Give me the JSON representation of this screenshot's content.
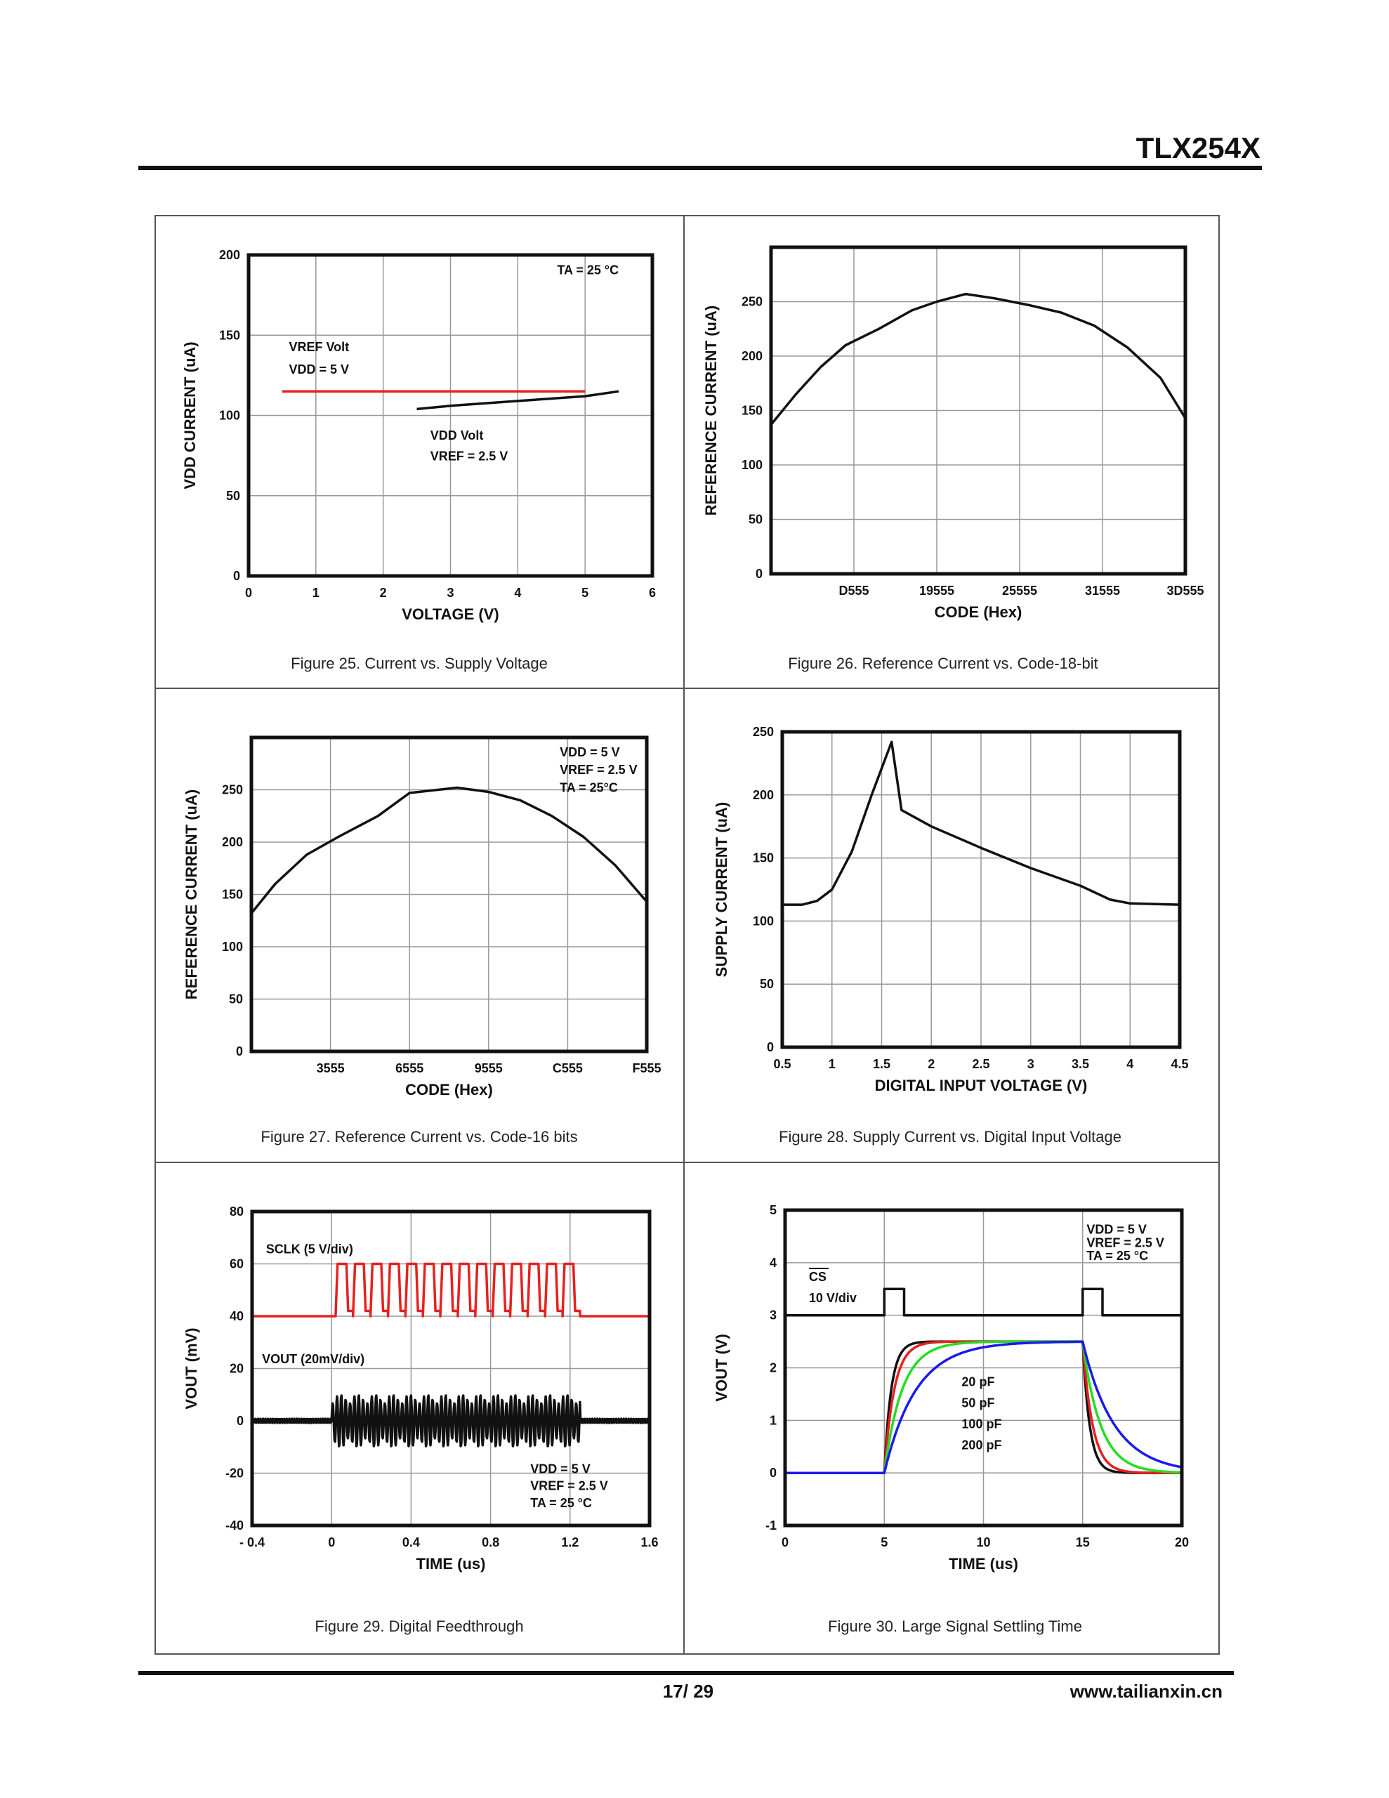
{
  "header": {
    "part_number": "TLX254X"
  },
  "footer": {
    "page": "17/ 29",
    "website": "www.tailianxin.cn"
  },
  "chart_data": [
    {
      "type": "line",
      "title": "Figure 25.  Current vs. Supply Voltage",
      "xlabel": "VOLTAGE (V)",
      "ylabel": "VDD CURRENT (uA)",
      "xlim": [
        0,
        6
      ],
      "ylim": [
        0,
        200
      ],
      "grid": true,
      "xticks": [
        0,
        1,
        2,
        3,
        4,
        5,
        6
      ],
      "xtick_labels": [
        "0",
        "1",
        "2",
        "3",
        "4",
        "5",
        "6"
      ],
      "yticks": [
        0,
        50,
        100,
        150,
        200
      ],
      "ytick_labels": [
        "0",
        "50",
        "100",
        "150",
        "200"
      ],
      "series": [
        {
          "name": "VREF Volt, VDD = 5 V",
          "color": "#e8201e",
          "x": [
            0.5,
            5.0
          ],
          "y": [
            115,
            115
          ]
        },
        {
          "name": "VDD Volt, VREF = 2.5 V",
          "color": "#111111",
          "x": [
            2.5,
            3,
            4,
            5,
            5.5
          ],
          "y": [
            104,
            106,
            109,
            112,
            115
          ]
        }
      ],
      "annotations": [
        "TA = 25 °C",
        "VREF Volt",
        "VDD = 5 V",
        "VDD Volt",
        "VREF = 2.5 V"
      ]
    },
    {
      "type": "line",
      "title": "Figure 26.  Reference Current vs. Code-18-bit",
      "xlabel": "CODE (Hex)",
      "ylabel": "REFERENCE CURRENT (uA)",
      "xlim": [
        0,
        5
      ],
      "ylim": [
        0,
        300
      ],
      "grid": true,
      "xticks": [
        1,
        2,
        3,
        4,
        5
      ],
      "xtick_labels": [
        "D555",
        "19555",
        "25555",
        "31555",
        "3D555"
      ],
      "yticks": [
        0,
        50,
        100,
        150,
        200,
        250
      ],
      "ytick_labels": [
        "0",
        "50",
        "100",
        "150",
        "200",
        "250"
      ],
      "series": [
        {
          "name": "Reference current",
          "color": "#111111",
          "x": [
            0,
            0.3,
            0.6,
            0.9,
            1.3,
            1.7,
            2.0,
            2.35,
            2.7,
            3.1,
            3.5,
            3.9,
            4.3,
            4.7,
            5.0
          ],
          "y": [
            137,
            165,
            190,
            210,
            225,
            242,
            250,
            257,
            253,
            247,
            240,
            228,
            208,
            180,
            143
          ]
        }
      ],
      "annotations": []
    },
    {
      "type": "line",
      "title": "Figure 27.  Reference Current vs. Code-16 bits",
      "xlabel": "CODE (Hex)",
      "ylabel": "REFERENCE CURRENT (uA)",
      "xlim": [
        0,
        5
      ],
      "ylim": [
        0,
        300
      ],
      "grid": true,
      "xticks": [
        1,
        2,
        3,
        4,
        5
      ],
      "xtick_labels": [
        "3555",
        "6555",
        "9555",
        "C555",
        "F555"
      ],
      "yticks": [
        0,
        50,
        100,
        150,
        200,
        250
      ],
      "ytick_labels": [
        "0",
        "50",
        "100",
        "150",
        "200",
        "250"
      ],
      "series": [
        {
          "name": "Reference current",
          "color": "#111111",
          "x": [
            0,
            0.3,
            0.7,
            1.1,
            1.6,
            2.0,
            2.6,
            3.0,
            3.4,
            3.8,
            4.2,
            4.6,
            5.0
          ],
          "y": [
            132,
            160,
            188,
            205,
            225,
            247,
            252,
            248,
            240,
            225,
            205,
            178,
            143
          ]
        }
      ],
      "annotations": [
        "VDD = 5 V",
        "VREF = 2.5 V",
        "TA = 25°C"
      ]
    },
    {
      "type": "line",
      "title": "Figure 28.  Supply Current vs. Digital Input Voltage",
      "xlabel": "DIGITAL INPUT VOLTAGE (V)",
      "ylabel": "SUPPLY CURRENT (uA)",
      "xlim": [
        0.5,
        4.5
      ],
      "ylim": [
        0,
        250
      ],
      "grid": true,
      "xticks": [
        0.5,
        1,
        1.5,
        2,
        2.5,
        3,
        3.5,
        4,
        4.5
      ],
      "xtick_labels": [
        "0.5",
        "1",
        "1.5",
        "2",
        "2.5",
        "3",
        "3.5",
        "4",
        "4.5"
      ],
      "yticks": [
        0,
        50,
        100,
        150,
        200,
        250
      ],
      "ytick_labels": [
        "0",
        "50",
        "100",
        "150",
        "200",
        "250"
      ],
      "series": [
        {
          "name": "Supply current",
          "color": "#111111",
          "x": [
            0.5,
            0.7,
            0.85,
            1.0,
            1.2,
            1.4,
            1.6,
            1.7,
            2.0,
            2.5,
            3.0,
            3.5,
            3.8,
            4.0,
            4.5
          ],
          "y": [
            113,
            113,
            116,
            125,
            155,
            200,
            242,
            188,
            175,
            158,
            142,
            128,
            117,
            114,
            113
          ]
        }
      ],
      "annotations": []
    },
    {
      "type": "line",
      "title": "Figure 29.  Digital Feedthrough",
      "xlabel": "TIME (us)",
      "ylabel": "VOUT (mV)",
      "xlim": [
        -0.4,
        1.6
      ],
      "ylim": [
        -40,
        80
      ],
      "grid": true,
      "xticks": [
        -0.4,
        0,
        0.4,
        0.8,
        1.2,
        1.6
      ],
      "xtick_labels": [
        "- 0.4",
        "0",
        "0.4",
        "0.8",
        "1.2",
        "1.6"
      ],
      "yticks": [
        -40,
        -20,
        0,
        20,
        40,
        60,
        80
      ],
      "ytick_labels": [
        "-40",
        "-20",
        "0",
        "20",
        "40",
        "60",
        "80"
      ],
      "series": [
        {
          "name": "SCLK (5 V/div)",
          "color": "#e8201e",
          "kind": "square",
          "low": 40,
          "high": 60,
          "start": 0.02,
          "end": 1.25,
          "pulses": 14
        },
        {
          "name": "VOUT (20mV/div)",
          "color": "#111111",
          "kind": "feedthrough",
          "baseline": 0,
          "amplitude": 10,
          "start": 0.0,
          "end": 1.25
        }
      ],
      "annotations": [
        "SCLK (5 V/div)",
        "VOUT (20mV/div)",
        "VDD = 5 V",
        "VREF = 2.5 V",
        "TA = 25 °C"
      ]
    },
    {
      "type": "line",
      "title": "Figure 30.  Large Signal Settling Time",
      "xlabel": "TIME (us)",
      "ylabel": "VOUT (V)",
      "xlim": [
        0,
        20
      ],
      "ylim": [
        -1,
        5
      ],
      "grid": true,
      "xticks": [
        0,
        5,
        10,
        15,
        20
      ],
      "xtick_labels": [
        "0",
        "5",
        "10",
        "15",
        "20"
      ],
      "yticks": [
        -1,
        0,
        1,
        2,
        3,
        4,
        5
      ],
      "ytick_labels": [
        "-1",
        "0",
        "1",
        "2",
        "3",
        "4",
        "5"
      ],
      "series": [
        {
          "name": "CS 10 V/div",
          "color": "#111111",
          "x": [
            0,
            5,
            5,
            6,
            6,
            15,
            15,
            16,
            16,
            20
          ],
          "y": [
            3,
            3,
            3.5,
            3.5,
            3,
            3,
            3.5,
            3.5,
            3,
            3
          ]
        },
        {
          "name": "20 pF",
          "color": "#111111",
          "kind": "settling",
          "tau_us": 0.35,
          "rise": 5,
          "fall": 15,
          "level": 2.5
        },
        {
          "name": "50 pF",
          "color": "#e8201e",
          "kind": "settling",
          "tau_us": 0.5,
          "rise": 5,
          "fall": 15,
          "level": 2.5
        },
        {
          "name": "100 pF",
          "color": "#22dd22",
          "kind": "settling",
          "tau_us": 0.9,
          "rise": 5,
          "fall": 15,
          "level": 2.5
        },
        {
          "name": "200 pF",
          "color": "#1a1aee",
          "kind": "settling",
          "tau_us": 1.6,
          "rise": 5,
          "fall": 15,
          "level": 2.5
        }
      ],
      "annotations": [
        "CS",
        "10 V/div",
        "VDD = 5 V",
        "VREF = 2.5 V",
        "TA = 25 °C",
        "20 pF",
        "50 pF",
        "100 pF",
        "200 pF"
      ]
    }
  ]
}
